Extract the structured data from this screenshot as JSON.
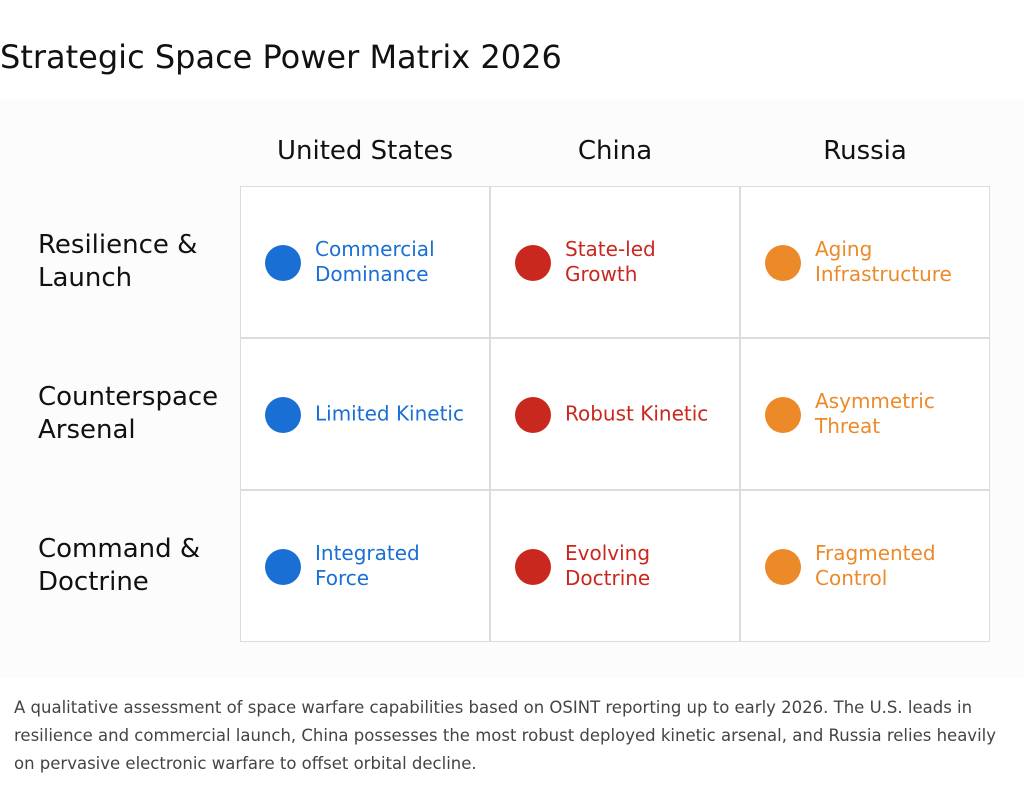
{
  "title": "Strategic Space Power Matrix 2026",
  "matrix": {
    "columns": [
      {
        "name": "United States",
        "color": "#1a6fd4"
      },
      {
        "name": "China",
        "color": "#c8281e"
      },
      {
        "name": "Russia",
        "color": "#ec8a2a"
      }
    ],
    "rows": [
      {
        "label": "Resilience & Launch",
        "cells": [
          "Commercial Dominance",
          "State-led Growth",
          "Aging Infrastructure"
        ]
      },
      {
        "label": "Counterspace Arsenal",
        "cells": [
          "Limited Kinetic",
          "Robust Kinetic",
          "Asymmetric Threat"
        ]
      },
      {
        "label": "Command & Doctrine",
        "cells": [
          "Integrated Force",
          "Evolving Doctrine",
          "Fragmented Control"
        ]
      }
    ]
  },
  "caption": "A qualitative assessment of space warfare capabilities based on OSINT reporting up to early 2026. The U.S. leads in resilience and commercial launch, China possesses the most robust deployed kinetic arsenal, and Russia relies heavily on pervasive electronic warfare to offset orbital decline."
}
